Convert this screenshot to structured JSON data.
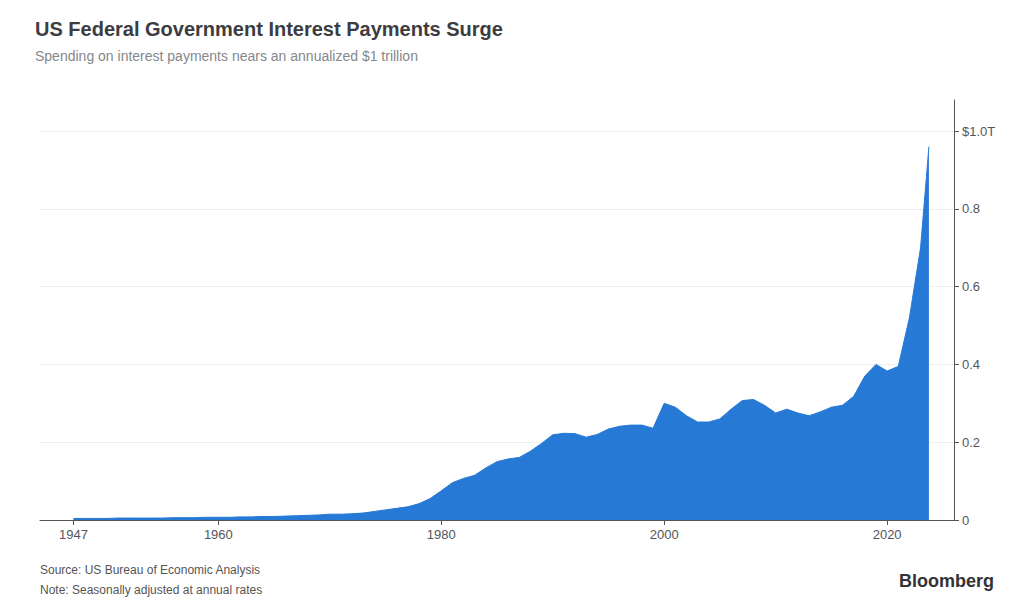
{
  "chart_data": {
    "type": "area",
    "title": "US Federal Government Interest Payments Surge",
    "subtitle": "Spending on interest payments nears an annualized $1 trillion",
    "annotations": [
      "Source: US Bureau of Economic Analysis",
      "Note: Seasonally adjusted at annual rates",
      "Bloomberg"
    ],
    "color": "#2679d5",
    "grid": true,
    "xlim": [
      1944,
      2026
    ],
    "xticks": [
      1947,
      1960,
      1980,
      2000,
      2020
    ],
    "ylim": [
      0,
      1.08
    ],
    "yticks": [
      0,
      0.2,
      0.4,
      0.6,
      0.8,
      {
        "value": 1.0,
        "label": "$1.0T"
      }
    ],
    "x": [
      1947,
      1948,
      1949,
      1950,
      1951,
      1952,
      1953,
      1954,
      1955,
      1956,
      1957,
      1958,
      1959,
      1960,
      1961,
      1962,
      1963,
      1964,
      1965,
      1966,
      1967,
      1968,
      1969,
      1970,
      1971,
      1972,
      1973,
      1974,
      1975,
      1976,
      1977,
      1978,
      1979,
      1980,
      1981,
      1982,
      1983,
      1984,
      1985,
      1986,
      1987,
      1988,
      1989,
      1990,
      1991,
      1992,
      1993,
      1994,
      1995,
      1996,
      1997,
      1998,
      1999,
      2000,
      2001,
      2002,
      2003,
      2004,
      2005,
      2006,
      2007,
      2008,
      2009,
      2010,
      2011,
      2012,
      2013,
      2014,
      2015,
      2016,
      2017,
      2018,
      2019,
      2020,
      2021,
      2022,
      2023,
      2023.75
    ],
    "values": [
      0.004,
      0.004,
      0.004,
      0.004,
      0.005,
      0.005,
      0.005,
      0.005,
      0.005,
      0.006,
      0.006,
      0.006,
      0.007,
      0.007,
      0.007,
      0.008,
      0.008,
      0.009,
      0.009,
      0.01,
      0.011,
      0.012,
      0.013,
      0.015,
      0.015,
      0.016,
      0.018,
      0.022,
      0.026,
      0.03,
      0.034,
      0.042,
      0.055,
      0.075,
      0.096,
      0.107,
      0.115,
      0.134,
      0.15,
      0.157,
      0.161,
      0.177,
      0.197,
      0.219,
      0.223,
      0.222,
      0.213,
      0.22,
      0.234,
      0.241,
      0.244,
      0.244,
      0.236,
      0.3,
      0.29,
      0.268,
      0.252,
      0.252,
      0.26,
      0.285,
      0.307,
      0.31,
      0.295,
      0.275,
      0.285,
      0.275,
      0.268,
      0.278,
      0.29,
      0.295,
      0.318,
      0.37,
      0.4,
      0.383,
      0.395,
      0.52,
      0.7,
      0.96
    ]
  }
}
